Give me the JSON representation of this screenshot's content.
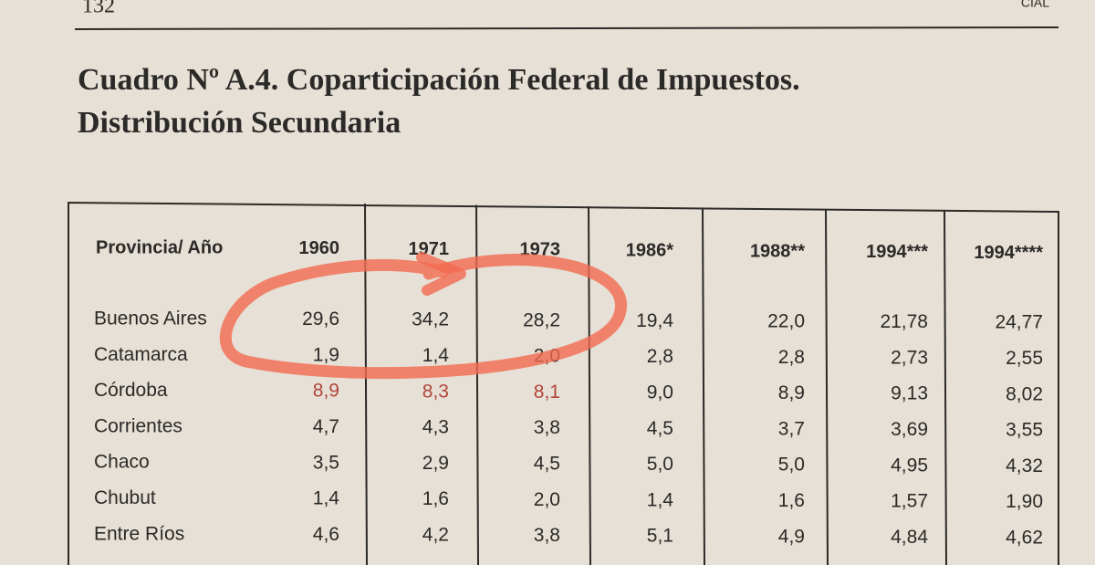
{
  "running_head": {
    "page_number": "132",
    "right": "CIAL"
  },
  "title": {
    "line1": "Cuadro Nº A.4. Coparticipación Federal de Impuestos.",
    "line2": "Distribución Secundaria"
  },
  "table": {
    "header": [
      "Provincia/ Año",
      "1960",
      "1971",
      "1973",
      "1986*",
      "1988**",
      "1994***",
      "1994****"
    ],
    "rows": [
      [
        "Buenos Aires",
        "29,6",
        "34,2",
        "28,2",
        "19,4",
        "22,0",
        "21,78",
        "24,77"
      ],
      [
        "Catamarca",
        "1,9",
        "1,4",
        "2,0",
        "2,8",
        "2,8",
        "2,73",
        "2,55"
      ],
      [
        "Córdoba",
        "8,9",
        "8,3",
        "8,1",
        "9,0",
        "8,9",
        "9,13",
        "8,02"
      ],
      [
        "Corrientes",
        "4,7",
        "4,3",
        "3,8",
        "4,5",
        "3,7",
        "3,69",
        "3,55"
      ],
      [
        "Chaco",
        "3,5",
        "2,9",
        "4,5",
        "5,0",
        "5,0",
        "4,95",
        "4,32"
      ],
      [
        "Chubut",
        "1,4",
        "1,6",
        "2,0",
        "1,4",
        "1,6",
        "1,57",
        "1,90"
      ],
      [
        "Entre Ríos",
        "4,6",
        "4,2",
        "3,8",
        "5,1",
        "4,9",
        "4,84",
        "4,62"
      ]
    ]
  }
}
